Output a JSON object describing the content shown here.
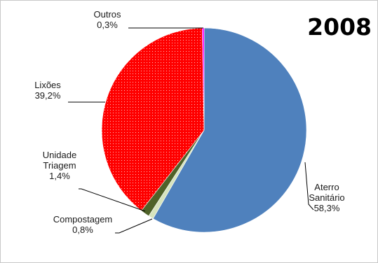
{
  "chart_data": {
    "type": "pie",
    "title": "2008",
    "slices": [
      {
        "label_lines": [
          "Aterro",
          "Sanitário"
        ],
        "value_label": "58,3%",
        "value": 58.3,
        "color": "#4f81bd",
        "pattern": "none"
      },
      {
        "label_lines": [
          "Compostagem"
        ],
        "value_label": "0,8%",
        "value": 0.8,
        "color": "#d7e4bd",
        "pattern": "none"
      },
      {
        "label_lines": [
          "Unidade",
          "Triagem"
        ],
        "value_label": "1,4%",
        "value": 1.4,
        "color": "#4f6228",
        "pattern": "none"
      },
      {
        "label_lines": [
          "Lixões"
        ],
        "value_label": "39,2%",
        "value": 39.2,
        "color": "#ff0000",
        "pattern": "dots"
      },
      {
        "label_lines": [
          "Outros"
        ],
        "value_label": "0,3%",
        "value": 0.3,
        "color": "#ff00ff",
        "pattern": "none"
      }
    ],
    "start_angle_deg": 0,
    "direction": "clockwise",
    "legend": "none"
  }
}
